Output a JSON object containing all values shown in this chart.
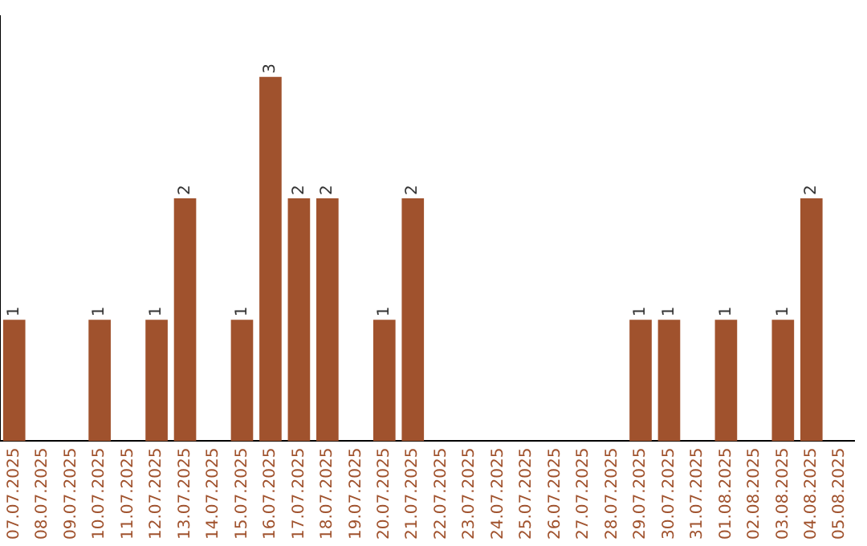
{
  "chart_data": {
    "type": "bar",
    "categories": [
      "07.07.2025",
      "08.07.2025",
      "09.07.2025",
      "10.07.2025",
      "11.07.2025",
      "12.07.2025",
      "13.07.2025",
      "14.07.2025",
      "15.07.2025",
      "16.07.2025",
      "17.07.2025",
      "18.07.2025",
      "19.07.2025",
      "20.07.2025",
      "21.07.2025",
      "22.07.2025",
      "23.07.2025",
      "24.07.2025",
      "25.07.2025",
      "26.07.2025",
      "27.07.2025",
      "28.07.2025",
      "29.07.2025",
      "30.07.2025",
      "31.07.2025",
      "01.08.2025",
      "02.08.2025",
      "03.08.2025",
      "04.08.2025",
      "05.08.2025"
    ],
    "values": [
      1,
      0,
      0,
      1,
      0,
      1,
      2,
      0,
      1,
      3,
      2,
      2,
      0,
      1,
      2,
      0,
      0,
      0,
      0,
      0,
      0,
      0,
      1,
      1,
      0,
      1,
      0,
      1,
      2,
      0
    ],
    "value_labels": [
      "1",
      null,
      null,
      "1",
      null,
      "1",
      "2",
      null,
      "1",
      "3",
      "2",
      "2",
      null,
      "1",
      "2",
      null,
      null,
      null,
      null,
      null,
      null,
      null,
      "1",
      "1",
      null,
      "1",
      null,
      "1",
      "2",
      null
    ],
    "color": "#a0522d",
    "grid": false,
    "legend": false,
    "tick_labels": "x"
  }
}
